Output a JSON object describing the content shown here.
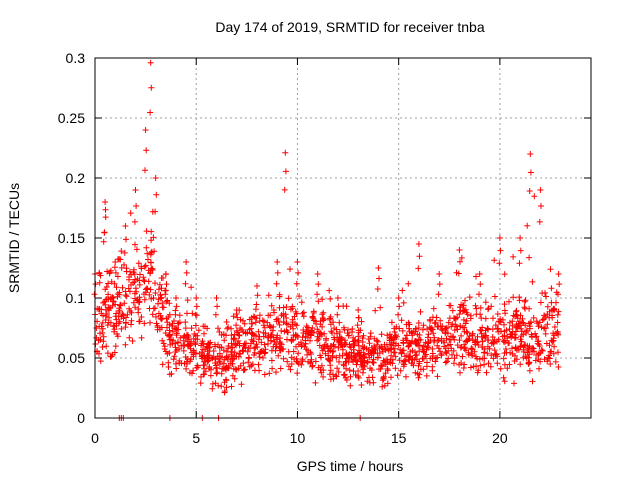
{
  "chart_data": {
    "type": "scatter",
    "title": "Day 174 of 2019, SRMTID for receiver tnba",
    "xlabel": "GPS time / hours",
    "ylabel": "SRMTID / TECUs",
    "xlim": [
      0,
      24.5
    ],
    "ylim": [
      0,
      0.3
    ],
    "x_ticks": [
      0,
      5,
      10,
      15,
      20
    ],
    "x_tick_labels": [
      "0",
      "5",
      "10",
      "15",
      "20"
    ],
    "y_ticks": [
      0,
      0.05,
      0.1,
      0.15,
      0.2,
      0.25,
      0.3
    ],
    "y_tick_labels": [
      "0",
      "0.05",
      "0.1",
      "0.15",
      "0.2",
      "0.25",
      "0.3"
    ],
    "grid": true,
    "marker": "plus",
    "color": "#ff0000",
    "x_range_of_data": [
      0,
      22.9
    ],
    "series": [
      {
        "name": "SRMTID",
        "envelope": [
          {
            "t": 0.0,
            "mean": 0.075,
            "max": 0.12
          },
          {
            "t": 0.5,
            "mean": 0.085,
            "max": 0.18
          },
          {
            "t": 1.0,
            "mean": 0.09,
            "max": 0.13
          },
          {
            "t": 1.5,
            "mean": 0.1,
            "max": 0.16
          },
          {
            "t": 2.0,
            "mean": 0.11,
            "max": 0.19
          },
          {
            "t": 2.5,
            "mean": 0.115,
            "max": 0.24
          },
          {
            "t": 2.75,
            "mean": 0.12,
            "max": 0.296
          },
          {
            "t": 3.0,
            "mean": 0.105,
            "max": 0.2
          },
          {
            "t": 3.5,
            "mean": 0.08,
            "max": 0.12
          },
          {
            "t": 4.0,
            "mean": 0.06,
            "max": 0.1
          },
          {
            "t": 4.5,
            "mean": 0.06,
            "max": 0.13
          },
          {
            "t": 5.0,
            "mean": 0.055,
            "max": 0.1
          },
          {
            "t": 6.0,
            "mean": 0.05,
            "max": 0.1
          },
          {
            "t": 6.5,
            "mean": 0.045,
            "max": 0.08
          },
          {
            "t": 7.0,
            "mean": 0.055,
            "max": 0.09
          },
          {
            "t": 8.0,
            "mean": 0.065,
            "max": 0.11
          },
          {
            "t": 9.0,
            "mean": 0.07,
            "max": 0.13
          },
          {
            "t": 9.4,
            "mean": 0.07,
            "max": 0.221
          },
          {
            "t": 10.0,
            "mean": 0.068,
            "max": 0.13
          },
          {
            "t": 11.0,
            "mean": 0.065,
            "max": 0.12
          },
          {
            "t": 12.0,
            "mean": 0.058,
            "max": 0.1
          },
          {
            "t": 13.0,
            "mean": 0.053,
            "max": 0.09
          },
          {
            "t": 14.0,
            "mean": 0.05,
            "max": 0.125
          },
          {
            "t": 15.0,
            "mean": 0.058,
            "max": 0.1
          },
          {
            "t": 16.0,
            "mean": 0.057,
            "max": 0.145
          },
          {
            "t": 17.0,
            "mean": 0.063,
            "max": 0.12
          },
          {
            "t": 18.0,
            "mean": 0.07,
            "max": 0.14
          },
          {
            "t": 19.0,
            "mean": 0.065,
            "max": 0.12
          },
          {
            "t": 20.0,
            "mean": 0.067,
            "max": 0.15
          },
          {
            "t": 21.0,
            "mean": 0.07,
            "max": 0.15
          },
          {
            "t": 21.5,
            "mean": 0.065,
            "max": 0.22
          },
          {
            "t": 22.0,
            "mean": 0.07,
            "max": 0.19
          },
          {
            "t": 22.9,
            "mean": 0.075,
            "max": 0.12
          }
        ],
        "zero_values_at_hours": [
          1.2,
          1.3,
          1.4,
          3.7,
          5.3,
          6.1,
          13.1
        ]
      }
    ]
  }
}
